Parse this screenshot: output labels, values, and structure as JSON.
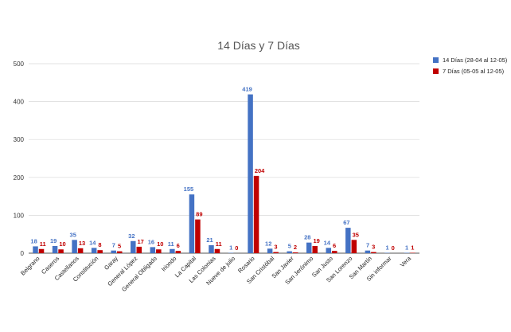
{
  "chart_data": {
    "type": "bar",
    "title": "14 Días y 7 Días",
    "xlabel": "",
    "ylabel": "",
    "ylim": [
      0,
      500
    ],
    "yticks": [
      0,
      100,
      200,
      300,
      400,
      500
    ],
    "grid": true,
    "legend_position": "right",
    "categories": [
      "Belgrano",
      "Caseros",
      "Castellanos",
      "Constitución",
      "Garay",
      "General López",
      "General Obligado",
      "Iriondo",
      "La Capital",
      "Las Colonias",
      "Nueve de julio",
      "Rosario",
      "San Cristóbal",
      "San Javier",
      "San Jerónimo",
      "San Justo",
      "San Lorenzo",
      "San Martín",
      "Sin informar",
      "Vera"
    ],
    "series": [
      {
        "name": "14 Días (28-04 al 12-05)",
        "color": "#4472c4",
        "values": [
          18,
          19,
          35,
          14,
          7,
          32,
          16,
          11,
          155,
          21,
          1,
          419,
          12,
          5,
          28,
          14,
          67,
          7,
          1,
          1
        ]
      },
      {
        "name": "7 Días (05-05 al 12-05)",
        "color": "#c00000",
        "values": [
          11,
          10,
          13,
          8,
          5,
          17,
          10,
          6,
          89,
          11,
          0,
          204,
          3,
          2,
          19,
          6,
          35,
          3,
          0,
          1
        ]
      }
    ]
  }
}
